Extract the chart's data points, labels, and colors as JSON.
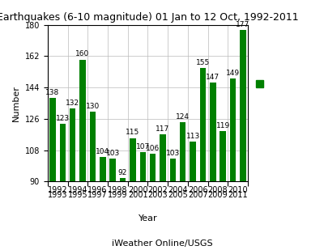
{
  "years": [
    "1992",
    "1993",
    "1994",
    "1995",
    "1996",
    "1997",
    "1998",
    "1999",
    "2000",
    "2001",
    "2002",
    "2003",
    "2004",
    "2005",
    "2006",
    "2007",
    "2008",
    "2009",
    "2010",
    "2011"
  ],
  "values": [
    138,
    123,
    132,
    160,
    130,
    104,
    103,
    92,
    115,
    107,
    106,
    117,
    103,
    124,
    113,
    155,
    147,
    119,
    149,
    177
  ],
  "bar_color": "#008000",
  "legend_color": "#008000",
  "title": "Earthquakes (6-10 magnitude) 01 Jan to 12 Oct, 1992-2011",
  "xlabel": "Year",
  "ylabel": "Number",
  "footer": "iWeather Online/USGS",
  "ylim": [
    90,
    180
  ],
  "yticks": [
    90,
    108,
    126,
    144,
    162,
    180
  ],
  "title_fontsize": 9,
  "label_fontsize": 8,
  "tick_fontsize": 7,
  "bar_label_fontsize": 6.5,
  "grid_color": "#bbbbbb",
  "bg_color": "#ffffff"
}
